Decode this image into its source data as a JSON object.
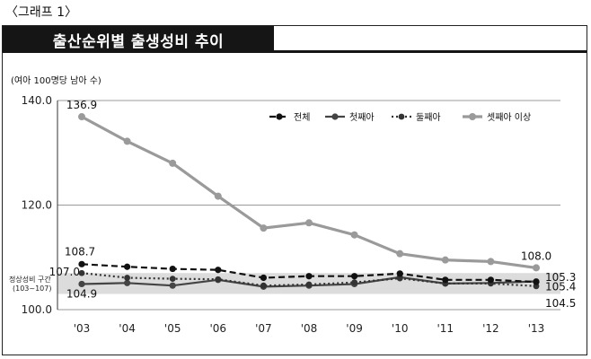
{
  "graph_label": "〈그래프 1〉",
  "title": "출산순위별 출생성비 추이",
  "chart_data": {
    "type": "line",
    "title": "출산순위별 출생성비 추이",
    "unit_label": "(여아 100명당 남아 수)",
    "x": [
      "'03",
      "'04",
      "'05",
      "'06",
      "'07",
      "'08",
      "'09",
      "'10",
      "'11",
      "'12",
      "'13"
    ],
    "ylim": [
      100,
      140
    ],
    "yticks": [
      "140.0",
      "120.0",
      "100.0"
    ],
    "ytick_values": [
      140,
      120,
      100
    ],
    "grid": true,
    "legend_position": "top-right",
    "normal_band": {
      "label_line1": "정상성비 구간",
      "label_line2": "(103~107)",
      "range": [
        103,
        107
      ]
    },
    "series": [
      {
        "name": "전체",
        "style": "dashed-marker",
        "color": "#111111",
        "values": [
          108.7,
          108.2,
          107.8,
          107.6,
          106.1,
          106.4,
          106.4,
          106.9,
          105.7,
          105.7,
          105.3
        ]
      },
      {
        "name": "첫째아",
        "style": "solid-marker",
        "color": "#444444",
        "values": [
          104.9,
          105.1,
          104.6,
          105.7,
          104.4,
          104.6,
          104.9,
          106.2,
          105.0,
          105.1,
          105.4
        ]
      },
      {
        "name": "둘째아",
        "style": "dotted-marker",
        "color": "#333333",
        "values": [
          107.0,
          106.1,
          105.9,
          105.8,
          104.6,
          104.8,
          105.2,
          106.0,
          105.0,
          105.0,
          104.5
        ]
      },
      {
        "name": "셋째아 이상",
        "style": "solid-thick-marker",
        "color": "#9a9a9a",
        "values": [
          136.9,
          132.2,
          128.0,
          121.7,
          115.6,
          116.6,
          114.3,
          110.7,
          109.5,
          109.2,
          108.0
        ]
      }
    ],
    "data_labels": [
      {
        "text": "136.9",
        "series": 3,
        "index": 0,
        "pos": "above"
      },
      {
        "text": "108.7",
        "series": 0,
        "index": 0,
        "pos": "above-left"
      },
      {
        "text": "107.0",
        "series": 2,
        "index": 0,
        "pos": "left"
      },
      {
        "text": "104.9",
        "series": 1,
        "index": 0,
        "pos": "below"
      },
      {
        "text": "108.0",
        "series": 3,
        "index": 10,
        "pos": "above"
      },
      {
        "text": "105.3",
        "series": 0,
        "index": 10,
        "pos": "right-up"
      },
      {
        "text": "105.4",
        "series": 1,
        "index": 10,
        "pos": "right"
      },
      {
        "text": "104.5",
        "series": 2,
        "index": 10,
        "pos": "right-down"
      }
    ]
  }
}
